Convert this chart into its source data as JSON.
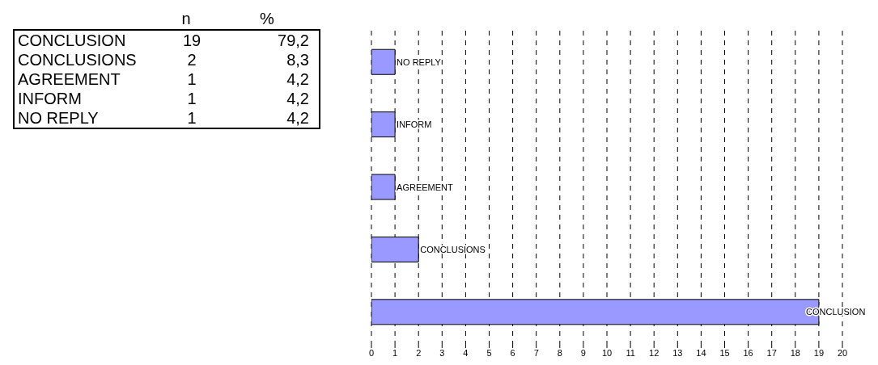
{
  "chart_data": [
    {
      "type": "other",
      "annotations": [
        "n",
        "%",
        "CONCLUSION",
        "19",
        "79,2",
        "CONCLUSIONS",
        "2",
        "8,3",
        "AGREEMENT",
        "1",
        "4,2",
        "INFORM",
        "1",
        "4,2",
        "NO REPLY",
        "1",
        "4,2"
      ]
    },
    {
      "type": "bar",
      "orientation": "horizontal",
      "categories": [
        "NO REPLY",
        "INFORM",
        "AGREEMENT",
        "CONCLUSIONS",
        "CONCLUSION"
      ],
      "values": [
        1,
        1,
        1,
        2,
        19
      ],
      "color": "#9999ff",
      "xlim": [
        0,
        20
      ],
      "xticks": [
        0,
        1,
        2,
        3,
        4,
        5,
        6,
        7,
        8,
        9,
        10,
        11,
        12,
        13,
        14,
        15,
        16,
        17,
        18,
        19,
        20
      ],
      "grid": "x"
    }
  ]
}
